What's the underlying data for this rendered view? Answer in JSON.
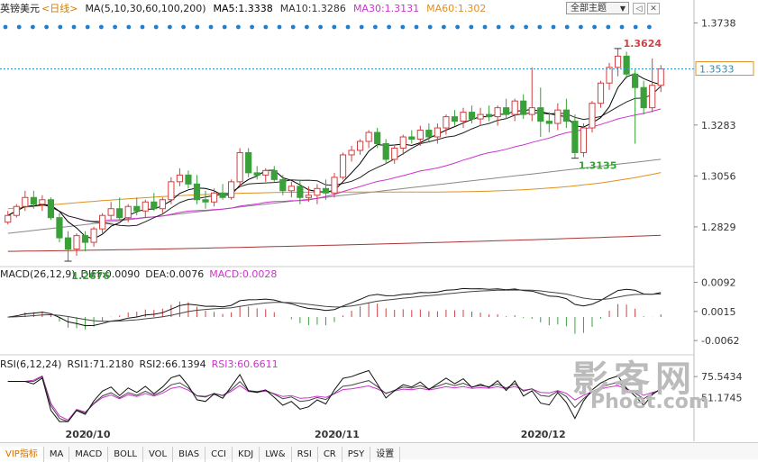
{
  "header": {
    "symbol": "英镑美元",
    "period": "<日线>",
    "ma_params": "MA(5,10,30,60,100,200)",
    "ma5": "MA5:1.3338",
    "ma10": "MA10:1.3286",
    "ma30": "MA30:1.3131",
    "ma60": "MA60:1.302",
    "theme_button": "全部主题",
    "theme_arrow": "▼",
    "icon_prev": "◁",
    "icon_close": "✕"
  },
  "colors": {
    "up": "#d04040",
    "down": "#3aa03a",
    "ma5": "#000000",
    "ma10": "#222222",
    "ma30": "#cc33cc",
    "ma60": "#e09020",
    "ma100": "#888888",
    "ma200": "#aa3333",
    "dots": "#1e7fd0",
    "crosshair": "#3399cc"
  },
  "macd_header": {
    "title": "MACD(26,12,9)",
    "diff": "DIFF:0.0090",
    "dea": "DEA:0.0076",
    "macd": "MACD:0.0028"
  },
  "rsi_header": {
    "title": "RSI(6,12,24)",
    "rsi1": "RSI1:71.2180",
    "rsi2": "RSI2:66.1394",
    "rsi3": "RSI3:60.6611"
  },
  "chart_data": {
    "type": "candlestick",
    "y_ticks": [
      1.3738,
      1.3533,
      1.3283,
      1.3056,
      1.2829
    ],
    "y_tick_labels": [
      "1.3738",
      "1.3283",
      "1.3056",
      "1.2829"
    ],
    "ylim": [
      1.266,
      1.376
    ],
    "current_price": "1.3533",
    "x_labels": [
      "2020/10",
      "2020/11",
      "2020/12"
    ],
    "annotations": {
      "high": "1.3624",
      "low": "1.2676",
      "swing_low": "1.3135"
    },
    "candles": [
      {
        "o": 1.285,
        "h": 1.29,
        "l": 1.284,
        "c": 1.288
      },
      {
        "o": 1.288,
        "h": 1.293,
        "l": 1.287,
        "c": 1.292
      },
      {
        "o": 1.292,
        "h": 1.299,
        "l": 1.29,
        "c": 1.296
      },
      {
        "o": 1.296,
        "h": 1.299,
        "l": 1.291,
        "c": 1.293
      },
      {
        "o": 1.293,
        "h": 1.297,
        "l": 1.29,
        "c": 1.295
      },
      {
        "o": 1.295,
        "h": 1.296,
        "l": 1.286,
        "c": 1.287
      },
      {
        "o": 1.287,
        "h": 1.289,
        "l": 1.276,
        "c": 1.278
      },
      {
        "o": 1.278,
        "h": 1.281,
        "l": 1.2676,
        "c": 1.273
      },
      {
        "o": 1.273,
        "h": 1.28,
        "l": 1.27,
        "c": 1.279
      },
      {
        "o": 1.279,
        "h": 1.281,
        "l": 1.272,
        "c": 1.276
      },
      {
        "o": 1.276,
        "h": 1.283,
        "l": 1.274,
        "c": 1.282
      },
      {
        "o": 1.282,
        "h": 1.289,
        "l": 1.28,
        "c": 1.288
      },
      {
        "o": 1.288,
        "h": 1.294,
        "l": 1.286,
        "c": 1.291
      },
      {
        "o": 1.291,
        "h": 1.296,
        "l": 1.286,
        "c": 1.287
      },
      {
        "o": 1.287,
        "h": 1.293,
        "l": 1.285,
        "c": 1.292
      },
      {
        "o": 1.292,
        "h": 1.296,
        "l": 1.288,
        "c": 1.29
      },
      {
        "o": 1.29,
        "h": 1.295,
        "l": 1.287,
        "c": 1.294
      },
      {
        "o": 1.294,
        "h": 1.298,
        "l": 1.29,
        "c": 1.291
      },
      {
        "o": 1.291,
        "h": 1.296,
        "l": 1.289,
        "c": 1.295
      },
      {
        "o": 1.295,
        "h": 1.305,
        "l": 1.293,
        "c": 1.303
      },
      {
        "o": 1.303,
        "h": 1.309,
        "l": 1.301,
        "c": 1.306
      },
      {
        "o": 1.306,
        "h": 1.308,
        "l": 1.3,
        "c": 1.302
      },
      {
        "o": 1.302,
        "h": 1.306,
        "l": 1.293,
        "c": 1.295
      },
      {
        "o": 1.295,
        "h": 1.299,
        "l": 1.291,
        "c": 1.294
      },
      {
        "o": 1.294,
        "h": 1.3,
        "l": 1.292,
        "c": 1.298
      },
      {
        "o": 1.298,
        "h": 1.302,
        "l": 1.295,
        "c": 1.296
      },
      {
        "o": 1.296,
        "h": 1.304,
        "l": 1.295,
        "c": 1.303
      },
      {
        "o": 1.303,
        "h": 1.318,
        "l": 1.301,
        "c": 1.316
      },
      {
        "o": 1.316,
        "h": 1.318,
        "l": 1.305,
        "c": 1.307
      },
      {
        "o": 1.307,
        "h": 1.31,
        "l": 1.304,
        "c": 1.306
      },
      {
        "o": 1.306,
        "h": 1.309,
        "l": 1.303,
        "c": 1.308
      },
      {
        "o": 1.308,
        "h": 1.31,
        "l": 1.303,
        "c": 1.304
      },
      {
        "o": 1.304,
        "h": 1.306,
        "l": 1.297,
        "c": 1.299
      },
      {
        "o": 1.299,
        "h": 1.303,
        "l": 1.296,
        "c": 1.301
      },
      {
        "o": 1.301,
        "h": 1.304,
        "l": 1.293,
        "c": 1.296
      },
      {
        "o": 1.296,
        "h": 1.301,
        "l": 1.294,
        "c": 1.297
      },
      {
        "o": 1.297,
        "h": 1.302,
        "l": 1.293,
        "c": 1.3
      },
      {
        "o": 1.3,
        "h": 1.304,
        "l": 1.295,
        "c": 1.298
      },
      {
        "o": 1.298,
        "h": 1.307,
        "l": 1.296,
        "c": 1.305
      },
      {
        "o": 1.305,
        "h": 1.316,
        "l": 1.304,
        "c": 1.315
      },
      {
        "o": 1.315,
        "h": 1.319,
        "l": 1.312,
        "c": 1.317
      },
      {
        "o": 1.317,
        "h": 1.322,
        "l": 1.315,
        "c": 1.321
      },
      {
        "o": 1.321,
        "h": 1.326,
        "l": 1.318,
        "c": 1.325
      },
      {
        "o": 1.325,
        "h": 1.327,
        "l": 1.318,
        "c": 1.32
      },
      {
        "o": 1.32,
        "h": 1.322,
        "l": 1.311,
        "c": 1.313
      },
      {
        "o": 1.313,
        "h": 1.319,
        "l": 1.311,
        "c": 1.318
      },
      {
        "o": 1.318,
        "h": 1.324,
        "l": 1.315,
        "c": 1.323
      },
      {
        "o": 1.323,
        "h": 1.326,
        "l": 1.32,
        "c": 1.322
      },
      {
        "o": 1.322,
        "h": 1.328,
        "l": 1.319,
        "c": 1.326
      },
      {
        "o": 1.326,
        "h": 1.329,
        "l": 1.321,
        "c": 1.323
      },
      {
        "o": 1.323,
        "h": 1.329,
        "l": 1.32,
        "c": 1.327
      },
      {
        "o": 1.327,
        "h": 1.333,
        "l": 1.324,
        "c": 1.332
      },
      {
        "o": 1.332,
        "h": 1.335,
        "l": 1.328,
        "c": 1.33
      },
      {
        "o": 1.33,
        "h": 1.336,
        "l": 1.327,
        "c": 1.334
      },
      {
        "o": 1.334,
        "h": 1.337,
        "l": 1.329,
        "c": 1.331
      },
      {
        "o": 1.331,
        "h": 1.336,
        "l": 1.328,
        "c": 1.333
      },
      {
        "o": 1.333,
        "h": 1.337,
        "l": 1.33,
        "c": 1.332
      },
      {
        "o": 1.332,
        "h": 1.337,
        "l": 1.328,
        "c": 1.336
      },
      {
        "o": 1.336,
        "h": 1.34,
        "l": 1.331,
        "c": 1.333
      },
      {
        "o": 1.333,
        "h": 1.34,
        "l": 1.33,
        "c": 1.339
      },
      {
        "o": 1.339,
        "h": 1.342,
        "l": 1.331,
        "c": 1.333
      },
      {
        "o": 1.333,
        "h": 1.354,
        "l": 1.33,
        "c": 1.336
      },
      {
        "o": 1.336,
        "h": 1.345,
        "l": 1.323,
        "c": 1.33
      },
      {
        "o": 1.33,
        "h": 1.334,
        "l": 1.325,
        "c": 1.329
      },
      {
        "o": 1.329,
        "h": 1.338,
        "l": 1.326,
        "c": 1.335
      },
      {
        "o": 1.335,
        "h": 1.34,
        "l": 1.327,
        "c": 1.33
      },
      {
        "o": 1.33,
        "h": 1.333,
        "l": 1.3135,
        "c": 1.316
      },
      {
        "o": 1.316,
        "h": 1.329,
        "l": 1.314,
        "c": 1.327
      },
      {
        "o": 1.327,
        "h": 1.339,
        "l": 1.325,
        "c": 1.338
      },
      {
        "o": 1.338,
        "h": 1.348,
        "l": 1.336,
        "c": 1.347
      },
      {
        "o": 1.347,
        "h": 1.356,
        "l": 1.344,
        "c": 1.354
      },
      {
        "o": 1.354,
        "h": 1.3624,
        "l": 1.35,
        "c": 1.359
      },
      {
        "o": 1.359,
        "h": 1.361,
        "l": 1.349,
        "c": 1.351
      },
      {
        "o": 1.351,
        "h": 1.353,
        "l": 1.32,
        "c": 1.345
      },
      {
        "o": 1.345,
        "h": 1.348,
        "l": 1.333,
        "c": 1.336
      },
      {
        "o": 1.336,
        "h": 1.358,
        "l": 1.334,
        "c": 1.346
      },
      {
        "o": 1.346,
        "h": 1.355,
        "l": 1.343,
        "c": 1.3533
      }
    ],
    "macd_ticks": [
      0.0092,
      0.0015,
      -0.0062
    ],
    "macd_ylim": [
      -0.0095,
      0.0105
    ],
    "rsi_ticks": [
      "75.5434",
      "51.1745"
    ],
    "rsi_ylim": [
      22,
      86
    ]
  },
  "tabs": [
    "VIP指标",
    "MA",
    "MACD",
    "BOLL",
    "VOL",
    "BIAS",
    "CCI",
    "KDJ",
    "LW&",
    "RSI",
    "CR",
    "PSY",
    "设置"
  ],
  "watermark": {
    "main": "影客网",
    "sub": "Phoet.com"
  }
}
